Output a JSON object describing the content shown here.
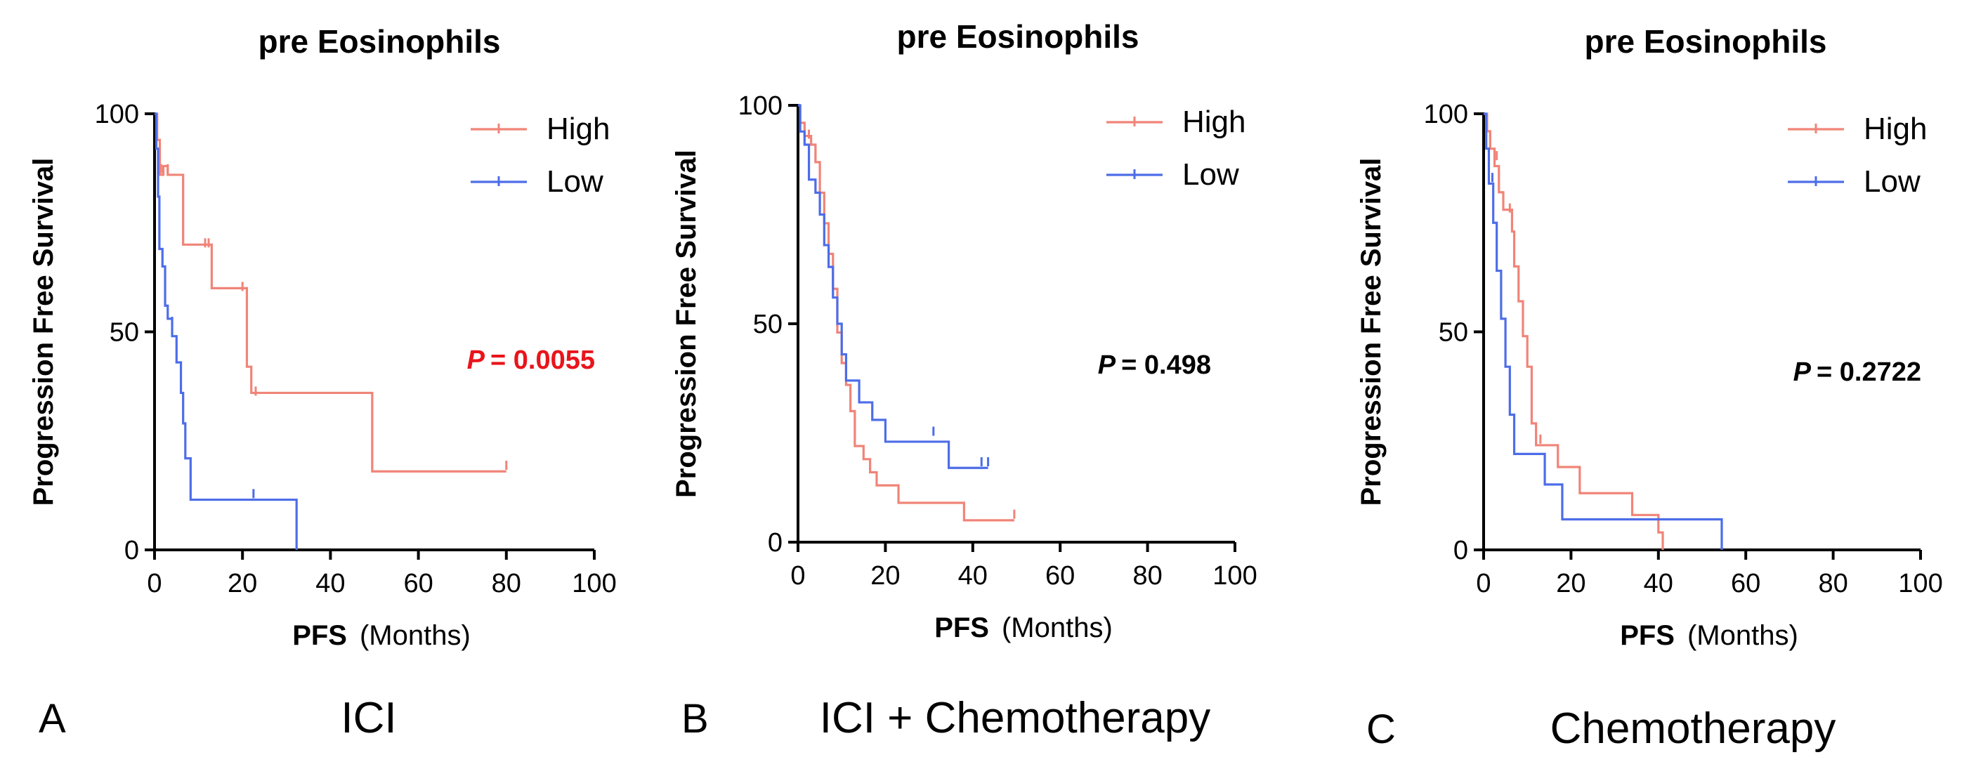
{
  "colors": {
    "high": "#f08478",
    "low": "#4d6de8",
    "p_significant": "#e8151b",
    "p_default": "#000000"
  },
  "chart_data": [
    {
      "type": "line",
      "subtype": "kaplan-meier",
      "panel_letter": "A",
      "group_name": "ICI",
      "title": "pre Eosinophils",
      "ylabel": "Progression Free Survival",
      "xlabel_bold": "PFS",
      "xlabel_rest": "(Months)",
      "xlim": [
        0,
        100
      ],
      "ylim": [
        0,
        100
      ],
      "xticks": [
        0,
        20,
        40,
        60,
        80,
        100
      ],
      "yticks": [
        0,
        50,
        100
      ],
      "legend_position": "top-right",
      "p_prefix": "P",
      "p_value": "= 0.0055",
      "p_significant": true,
      "series": [
        {
          "name": "High",
          "color_key": "high",
          "steps": [
            [
              0,
              100
            ],
            [
              0.6,
              94
            ],
            [
              1.2,
              86
            ],
            [
              2,
              88
            ],
            [
              3,
              86
            ],
            [
              5,
              86
            ],
            [
              6.5,
              70
            ],
            [
              12,
              70
            ],
            [
              13,
              60
            ],
            [
              20,
              60
            ],
            [
              21,
              42
            ],
            [
              22,
              36
            ],
            [
              49,
              36
            ],
            [
              49.5,
              18
            ],
            [
              80,
              18
            ]
          ],
          "censors": [
            [
              1.5,
              87
            ],
            [
              3,
              87
            ],
            [
              11.5,
              70
            ],
            [
              12.3,
              70
            ],
            [
              20,
              60
            ],
            [
              23,
              36
            ],
            [
              80,
              19
            ]
          ]
        },
        {
          "name": "Low",
          "color_key": "low",
          "steps": [
            [
              0,
              100
            ],
            [
              0.4,
              92
            ],
            [
              0.8,
              81
            ],
            [
              1.1,
              69
            ],
            [
              1.8,
              65
            ],
            [
              2.4,
              56
            ],
            [
              3,
              53
            ],
            [
              4,
              49
            ],
            [
              5,
              43
            ],
            [
              6,
              36
            ],
            [
              6.5,
              29
            ],
            [
              7,
              21
            ],
            [
              8.2,
              11.5
            ],
            [
              32,
              11.5
            ],
            [
              32.3,
              0
            ]
          ],
          "censors": [
            [
              4,
              52
            ],
            [
              22.5,
              12.5
            ]
          ]
        }
      ]
    },
    {
      "type": "line",
      "subtype": "kaplan-meier",
      "panel_letter": "B",
      "group_name": "ICI + Chemotherapy",
      "title": "pre Eosinophils",
      "ylabel": "Progression Free Survival",
      "xlabel_bold": "PFS",
      "xlabel_rest": "(Months)",
      "xlim": [
        0,
        100
      ],
      "ylim": [
        0,
        100
      ],
      "xticks": [
        0,
        20,
        40,
        60,
        80,
        100
      ],
      "yticks": [
        0,
        50,
        100
      ],
      "legend_position": "top-right",
      "p_prefix": "P",
      "p_value": "= 0.498",
      "p_significant": false,
      "series": [
        {
          "name": "High",
          "color_key": "high",
          "steps": [
            [
              0,
              100
            ],
            [
              0.5,
              96
            ],
            [
              1.5,
              93
            ],
            [
              3,
              91
            ],
            [
              4,
              87
            ],
            [
              5,
              80
            ],
            [
              6,
              73
            ],
            [
              7,
              66
            ],
            [
              8,
              58
            ],
            [
              9,
              48
            ],
            [
              10,
              41
            ],
            [
              11,
              36
            ],
            [
              12,
              30
            ],
            [
              13,
              22
            ],
            [
              15,
              19
            ],
            [
              16.5,
              16
            ],
            [
              18,
              13
            ],
            [
              23,
              9
            ],
            [
              36,
              9
            ],
            [
              38,
              5
            ],
            [
              49.5,
              5
            ]
          ],
          "censors": [
            [
              2.5,
              93
            ],
            [
              49.5,
              6
            ]
          ]
        },
        {
          "name": "Low",
          "color_key": "low",
          "steps": [
            [
              0,
              100
            ],
            [
              0.5,
              94
            ],
            [
              1.5,
              91
            ],
            [
              2.5,
              83
            ],
            [
              4,
              80
            ],
            [
              5,
              75
            ],
            [
              6,
              68
            ],
            [
              7,
              63
            ],
            [
              8,
              56
            ],
            [
              9,
              50
            ],
            [
              10,
              43
            ],
            [
              11,
              37
            ],
            [
              14,
              32
            ],
            [
              17,
              28
            ],
            [
              20,
              23
            ],
            [
              34,
              23
            ],
            [
              34.5,
              17
            ],
            [
              43.5,
              17
            ]
          ],
          "censors": [
            [
              31,
              25
            ],
            [
              42,
              18
            ],
            [
              43.5,
              18
            ]
          ]
        }
      ]
    },
    {
      "type": "line",
      "subtype": "kaplan-meier",
      "panel_letter": "C",
      "group_name": "Chemotherapy",
      "title": "pre Eosinophils",
      "ylabel": "Progression Free Survival",
      "xlabel_bold": "PFS",
      "xlabel_rest": "(Months)",
      "xlim": [
        0,
        100
      ],
      "ylim": [
        0,
        100
      ],
      "xticks": [
        0,
        20,
        40,
        60,
        80,
        100
      ],
      "yticks": [
        0,
        50,
        100
      ],
      "legend_position": "top-right",
      "p_prefix": "P",
      "p_value": "= 0.2722",
      "p_significant": false,
      "series": [
        {
          "name": "High",
          "color_key": "high",
          "steps": [
            [
              0,
              100
            ],
            [
              0.8,
              96
            ],
            [
              1.5,
              92
            ],
            [
              2.5,
              88
            ],
            [
              3.5,
              82
            ],
            [
              4.5,
              78
            ],
            [
              6.5,
              73
            ],
            [
              7,
              65
            ],
            [
              8,
              57
            ],
            [
              9,
              49
            ],
            [
              10,
              42
            ],
            [
              11,
              29
            ],
            [
              12,
              24
            ],
            [
              17,
              19
            ],
            [
              22,
              13
            ],
            [
              34,
              8
            ],
            [
              40,
              4
            ],
            [
              41,
              0
            ]
          ],
          "censors": [
            [
              3,
              90
            ],
            [
              6,
              78
            ],
            [
              13,
              25
            ]
          ]
        },
        {
          "name": "Low",
          "color_key": "low",
          "steps": [
            [
              0,
              100
            ],
            [
              0.6,
              92
            ],
            [
              1.2,
              84
            ],
            [
              2.2,
              75
            ],
            [
              3,
              64
            ],
            [
              4,
              53
            ],
            [
              5,
              42
            ],
            [
              6,
              31
            ],
            [
              7,
              22
            ],
            [
              13,
              22
            ],
            [
              14,
              15
            ],
            [
              18,
              7
            ],
            [
              54,
              7
            ],
            [
              54.5,
              0
            ]
          ],
          "censors": [
            [
              2,
              85
            ]
          ]
        }
      ]
    }
  ]
}
